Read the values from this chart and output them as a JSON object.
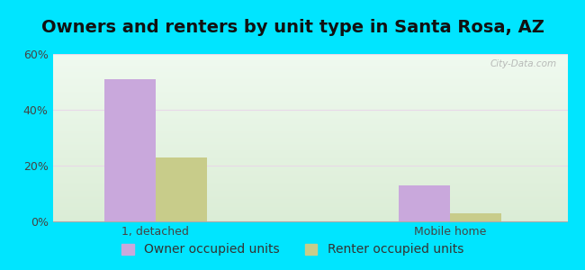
{
  "title": "Owners and renters by unit type in Santa Rosa, AZ",
  "categories": [
    "1, detached",
    "Mobile home"
  ],
  "owner_values": [
    51,
    13
  ],
  "renter_values": [
    23,
    3
  ],
  "owner_color": "#c9a8dc",
  "renter_color": "#c8cc8a",
  "ylim": [
    0,
    60
  ],
  "yticks": [
    0,
    20,
    40,
    60
  ],
  "ytick_labels": [
    "0%",
    "20%",
    "40%",
    "60%"
  ],
  "bar_width": 0.35,
  "group_positions": [
    1.0,
    3.0
  ],
  "outer_bg": "#00e5ff",
  "legend_labels": [
    "Owner occupied units",
    "Renter occupied units"
  ],
  "watermark": "City-Data.com",
  "title_fontsize": 14,
  "tick_fontsize": 9,
  "legend_fontsize": 10
}
